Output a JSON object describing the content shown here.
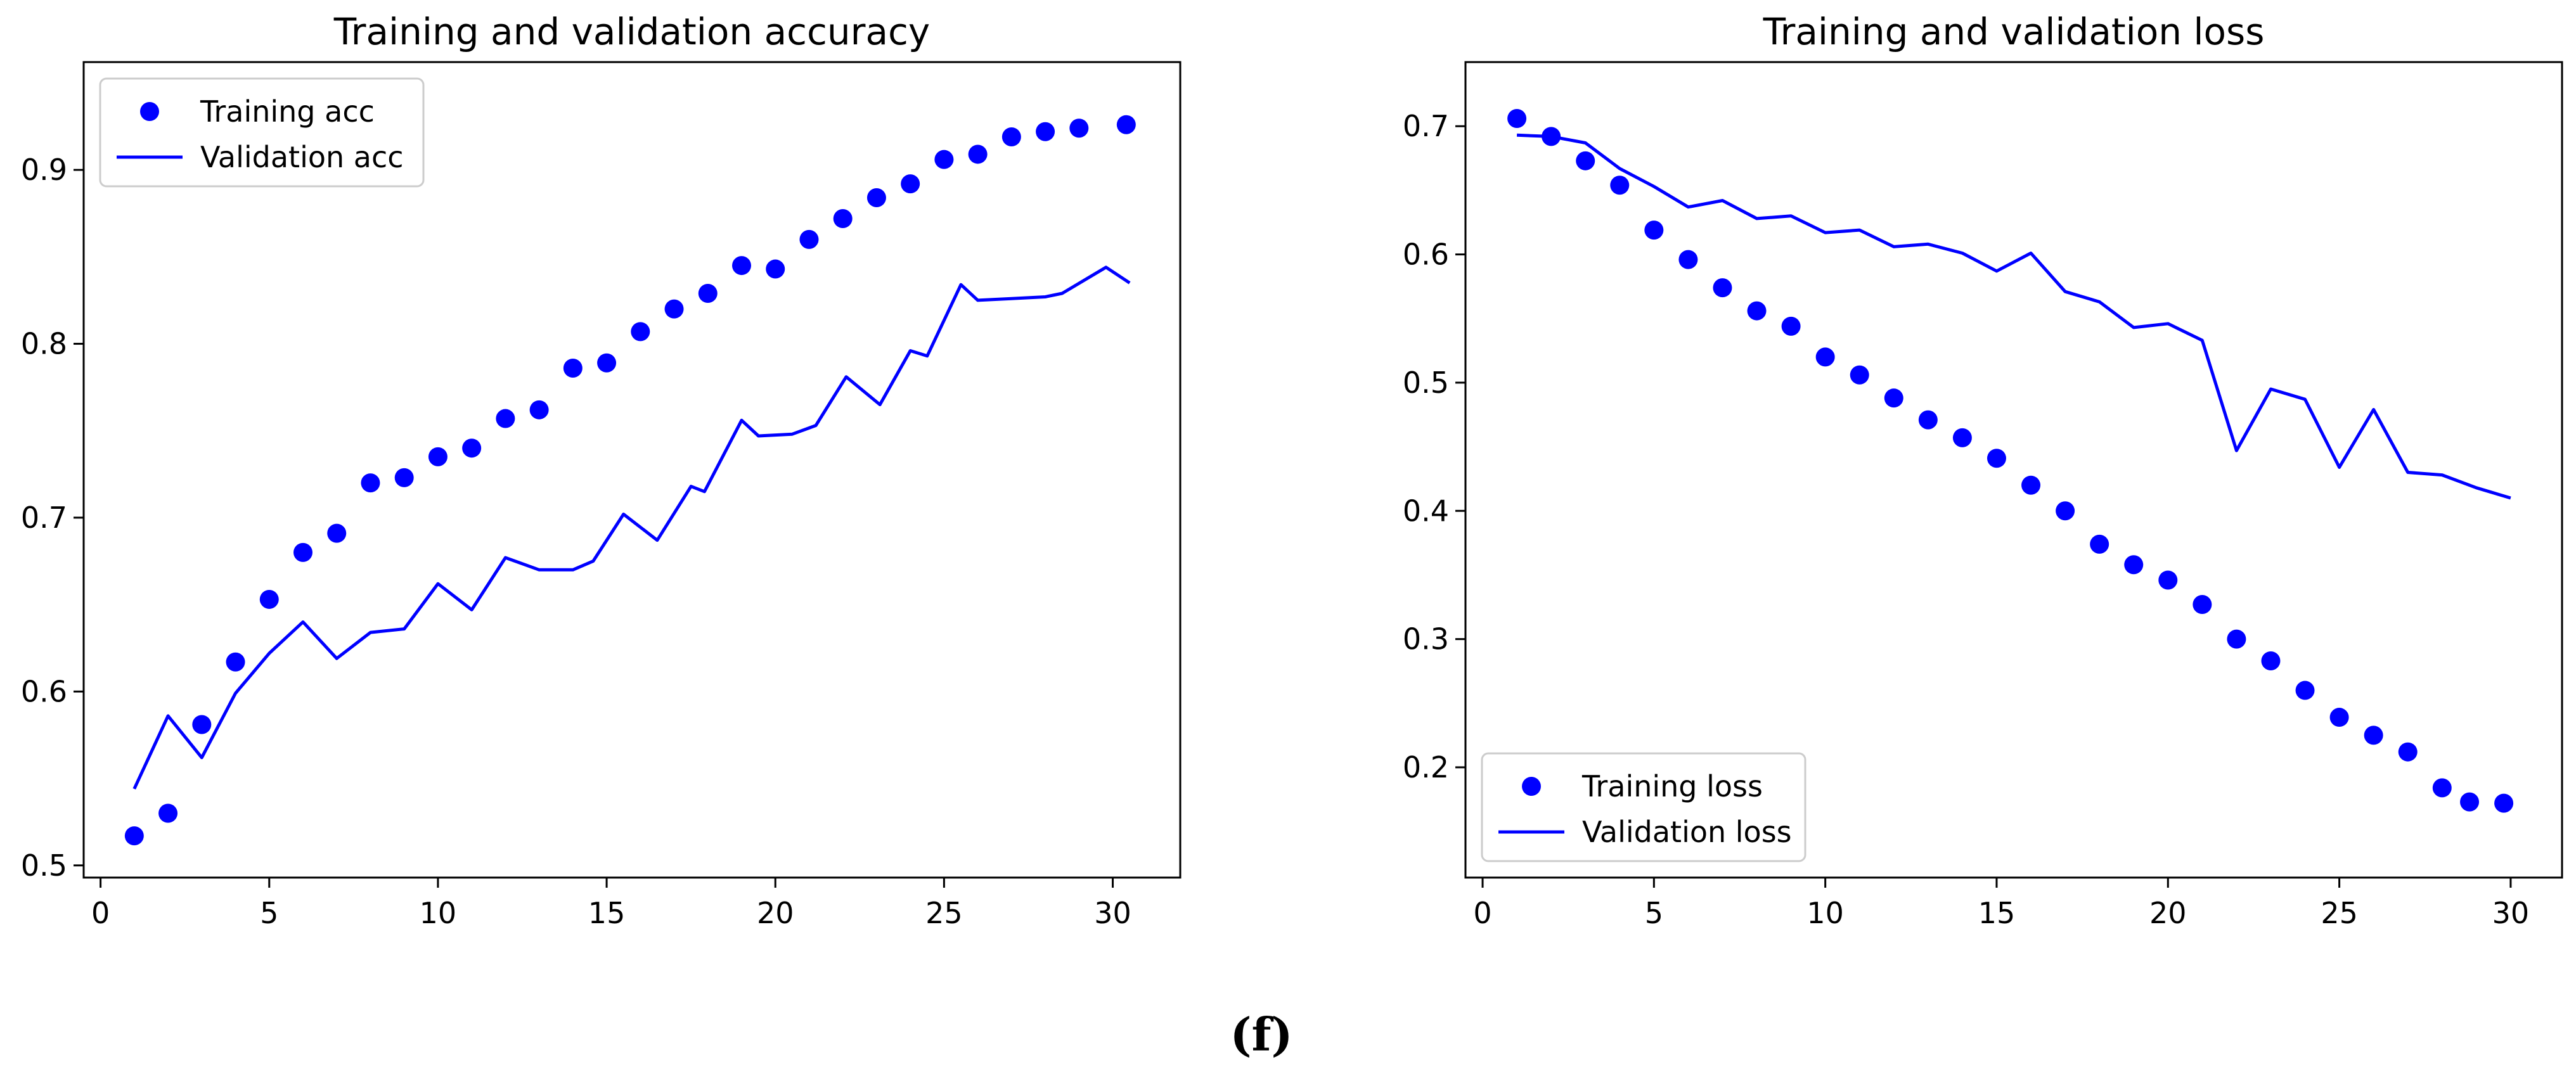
{
  "figure_label": "(f)",
  "colors": {
    "series": "#0000ff",
    "axis": "#000000",
    "legend_border": "#cccccc",
    "background": "#ffffff"
  },
  "chart_data": [
    {
      "type": "line",
      "title": "Training and validation accuracy",
      "xlabel": "",
      "ylabel": "",
      "xlim": [
        -0.5,
        32
      ],
      "ylim": [
        0.493,
        0.962
      ],
      "xticks": [
        0,
        5,
        10,
        15,
        20,
        25,
        30
      ],
      "yticks": [
        0.5,
        0.6,
        0.7,
        0.8,
        0.9
      ],
      "legend_position": "top-left",
      "grid": false,
      "series": [
        {
          "name": "Training acc",
          "style": "scatter",
          "x": [
            1,
            2,
            3,
            4,
            5,
            6,
            7,
            8,
            9,
            10,
            11,
            12,
            13,
            14,
            15,
            16,
            17,
            18,
            19,
            20,
            21,
            22,
            23,
            24,
            25,
            26,
            27,
            28,
            29,
            30.4
          ],
          "y": [
            0.517,
            0.53,
            0.581,
            0.617,
            0.653,
            0.68,
            0.691,
            0.72,
            0.723,
            0.735,
            0.74,
            0.757,
            0.762,
            0.786,
            0.789,
            0.807,
            0.82,
            0.829,
            0.845,
            0.843,
            0.86,
            0.872,
            0.884,
            0.892,
            0.906,
            0.909,
            0.919,
            0.922,
            0.924,
            0.926
          ]
        },
        {
          "name": "Validation acc",
          "style": "line",
          "x": [
            1,
            2,
            3,
            4,
            5,
            6,
            7,
            8,
            9,
            10,
            11,
            12,
            13,
            14,
            14.6,
            15.5,
            16.5,
            17.5,
            17.9,
            19,
            19.5,
            20.5,
            21.2,
            22.1,
            23.1,
            24,
            24.5,
            25.5,
            26,
            27,
            28,
            28.5,
            29.8,
            30.5
          ],
          "y": [
            0.544,
            0.586,
            0.562,
            0.599,
            0.622,
            0.64,
            0.619,
            0.634,
            0.636,
            0.662,
            0.647,
            0.677,
            0.67,
            0.67,
            0.675,
            0.702,
            0.687,
            0.718,
            0.715,
            0.756,
            0.747,
            0.748,
            0.753,
            0.781,
            0.765,
            0.796,
            0.793,
            0.834,
            0.825,
            0.826,
            0.827,
            0.829,
            0.844,
            0.835
          ]
        }
      ]
    },
    {
      "type": "line",
      "title": "Training and validation loss",
      "xlabel": "",
      "ylabel": "",
      "xlim": [
        -0.5,
        31.5
      ],
      "ylim": [
        0.114,
        0.75
      ],
      "xticks": [
        0,
        5,
        10,
        15,
        20,
        25,
        30
      ],
      "yticks": [
        0.2,
        0.3,
        0.4,
        0.5,
        0.6,
        0.7
      ],
      "legend_position": "bottom-left",
      "grid": false,
      "series": [
        {
          "name": "Training loss",
          "style": "scatter",
          "x": [
            1,
            2,
            3,
            4,
            5,
            6,
            7,
            8,
            9,
            10,
            11,
            12,
            13,
            14,
            15,
            16,
            17,
            18,
            19,
            20,
            21,
            22,
            23,
            24,
            25,
            26,
            27,
            28,
            28.8,
            29.8
          ],
          "y": [
            0.706,
            0.692,
            0.673,
            0.654,
            0.619,
            0.596,
            0.574,
            0.556,
            0.544,
            0.52,
            0.506,
            0.488,
            0.471,
            0.457,
            0.441,
            0.42,
            0.4,
            0.374,
            0.358,
            0.346,
            0.327,
            0.3,
            0.283,
            0.26,
            0.239,
            0.225,
            0.212,
            0.184,
            0.173,
            0.172
          ]
        },
        {
          "name": "Validation loss",
          "style": "line",
          "x": [
            1,
            2,
            3,
            4,
            5,
            6,
            7,
            8,
            9,
            10,
            11,
            12,
            13,
            14,
            15,
            16,
            17,
            18,
            19,
            20,
            21,
            22,
            23,
            24,
            25,
            26,
            27,
            28,
            29,
            30
          ],
          "y": [
            0.693,
            0.692,
            0.687,
            0.667,
            0.653,
            0.637,
            0.642,
            0.628,
            0.63,
            0.617,
            0.619,
            0.606,
            0.608,
            0.601,
            0.587,
            0.601,
            0.571,
            0.563,
            0.543,
            0.546,
            0.533,
            0.447,
            0.495,
            0.487,
            0.434,
            0.479,
            0.43,
            0.428,
            0.418,
            0.41
          ]
        }
      ]
    }
  ]
}
